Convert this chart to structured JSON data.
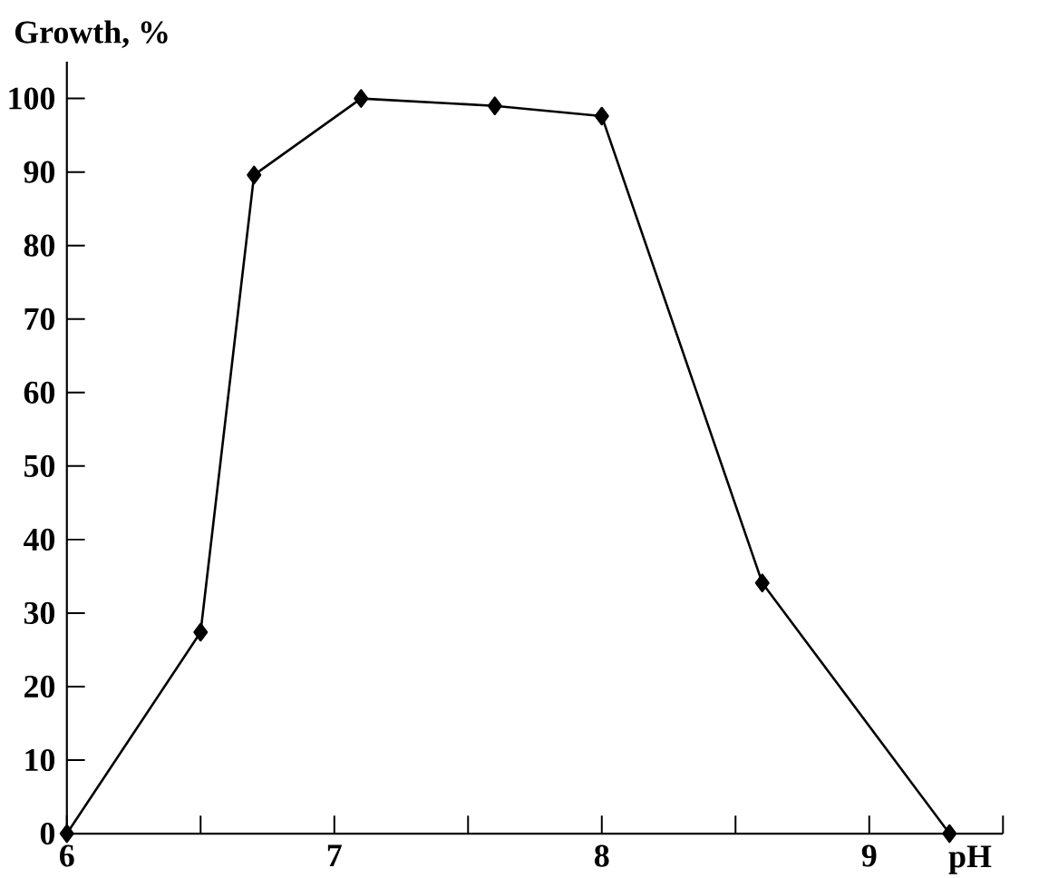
{
  "chart_data": {
    "type": "line",
    "xlabel": "pH",
    "ylabel": "Growth, %",
    "x": [
      6,
      6.5,
      6.7,
      7.1,
      7.6,
      8.0,
      8.6,
      9.3
    ],
    "series": [
      {
        "color": "#000000",
        "values": [
          0,
          27.4,
          89.6,
          100,
          99,
          97.6,
          34.1,
          0
        ]
      }
    ],
    "xlim": [
      6,
      9.5
    ],
    "ylim": [
      0,
      105
    ],
    "xticks": [
      6,
      {
        "value": 6.5,
        "label": null
      },
      7,
      {
        "value": 7.5,
        "label": null
      },
      8,
      {
        "value": 8.5,
        "label": null
      },
      9,
      {
        "value": 9.5,
        "label": null
      }
    ],
    "yticks": [
      0,
      10,
      20,
      30,
      40,
      50,
      60,
      70,
      80,
      90,
      100
    ],
    "grid": false,
    "marker": "diamond",
    "line_style": "solid"
  }
}
